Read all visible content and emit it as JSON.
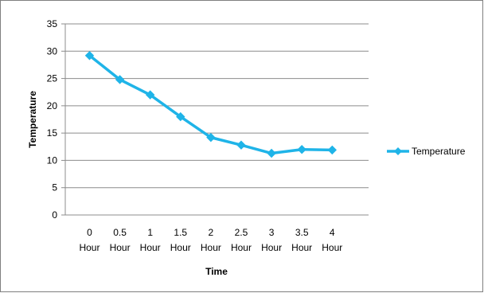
{
  "chart_data": {
    "type": "line",
    "title": "",
    "xlabel": "Time",
    "ylabel": "Temperature",
    "categories": [
      [
        "0",
        "Hour"
      ],
      [
        "0.5",
        "Hour"
      ],
      [
        "1",
        "Hour"
      ],
      [
        "1.5",
        "Hour"
      ],
      [
        "2",
        "Hour"
      ],
      [
        "2.5",
        "Hour"
      ],
      [
        "3",
        "Hour"
      ],
      [
        "3.5",
        "Hour"
      ],
      [
        "4",
        "Hour"
      ]
    ],
    "series": [
      {
        "name": "Temperature",
        "values": [
          29.2,
          24.8,
          22.0,
          18.0,
          14.2,
          12.8,
          11.3,
          12.0,
          11.9
        ],
        "color": "#1fb4e8",
        "marker": "diamond"
      }
    ],
    "ylim": [
      0,
      35
    ],
    "yticks": [
      0,
      5,
      10,
      15,
      20,
      25,
      30,
      35
    ],
    "grid": true,
    "legend": "right"
  }
}
